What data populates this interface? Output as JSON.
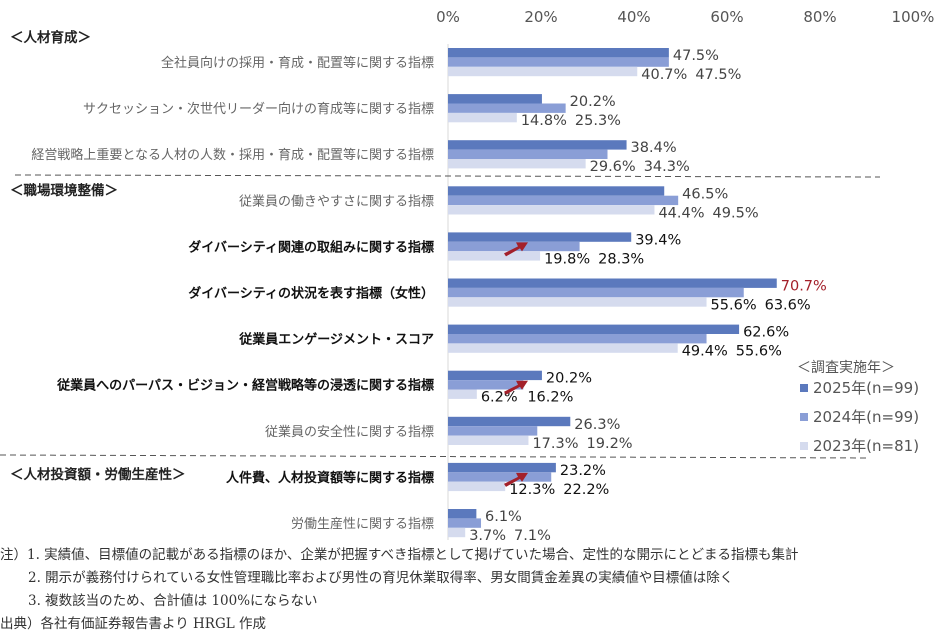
{
  "chart_data": {
    "type": "bar",
    "orientation": "horizontal",
    "xlim": [
      0,
      100
    ],
    "x_ticks": [
      "0%",
      "20%",
      "40%",
      "60%",
      "80%",
      "100%"
    ],
    "groups": [
      {
        "label": "＜人材育成＞",
        "start": 0
      },
      {
        "label": "＜職場環境整備＞",
        "start": 3
      },
      {
        "label": "＜人材投資額・労働生産性＞",
        "start": 9
      }
    ],
    "categories": [
      {
        "label": "全社員向けの採用・育成・配置等に関する指標",
        "bold": false
      },
      {
        "label": "サクセッション・次世代リーダー向けの育成等に関する指標",
        "bold": false
      },
      {
        "label": "経営戦略上重要となる人材の人数・採用・育成・配置等に関する指標",
        "bold": false
      },
      {
        "label": "従業員の働きやすさに関する指標",
        "bold": false
      },
      {
        "label": "ダイバーシティ関連の取組みに関する指標",
        "bold": true,
        "arrow": true
      },
      {
        "label": "ダイバーシティの状況を表す指標（女性）",
        "bold": true
      },
      {
        "label": "従業員エンゲージメント・スコア",
        "bold": true
      },
      {
        "label": "従業員へのパーパス・ビジョン・経営戦略等の浸透に関する指標",
        "bold": true,
        "arrow": true
      },
      {
        "label": "従業員の安全性に関する指標",
        "bold": false
      },
      {
        "label": "人件費、人材投資額等に関する指標",
        "bold": true,
        "arrow": true
      },
      {
        "label": "労働生産性に関する指標",
        "bold": false
      }
    ],
    "series": [
      {
        "name": "2025年(n=99)",
        "color": "#5b79bd",
        "values": [
          47.5,
          20.2,
          38.4,
          46.5,
          39.4,
          70.7,
          62.6,
          20.2,
          26.3,
          23.2,
          6.1
        ]
      },
      {
        "name": "2024年(n=99)",
        "color": "#8a9ed6",
        "values": [
          47.5,
          25.3,
          34.3,
          49.5,
          28.3,
          63.6,
          55.6,
          16.2,
          19.2,
          22.2,
          7.1
        ]
      },
      {
        "name": "2023年(n=81)",
        "color": "#d5dbee",
        "values": [
          40.7,
          14.8,
          29.6,
          44.4,
          19.8,
          55.6,
          49.4,
          6.2,
          17.3,
          12.3,
          3.7
        ]
      }
    ],
    "value_labels": [
      [
        "47.5%",
        "20.2%",
        "38.4%",
        "46.5%",
        "39.4%",
        "70.7%",
        "62.6%",
        "20.2%",
        "26.3%",
        "23.2%",
        "6.1%"
      ],
      [
        "47.5%",
        "25.3%",
        "34.3%",
        "49.5%",
        "28.3%",
        "63.6%",
        "55.6%",
        "16.2%",
        "19.2%",
        "22.2%",
        "7.1%"
      ],
      [
        "40.7%",
        "14.8%",
        "29.6%",
        "44.4%",
        "19.8%",
        "55.6%",
        "49.4%",
        "6.2%",
        "17.3%",
        "12.3%",
        "3.7%"
      ]
    ],
    "highlight_color": "#a3202a",
    "legend": {
      "title": "＜調査実施年＞",
      "position": "right"
    }
  },
  "notes": {
    "n1": "注）1.  実績値、目標値の記載がある指標のほか、企業が把握すべき指標として掲げていた場合、定性的な開示にとどまる指標も集計",
    "n2": "2.  開示が義務付けられている女性管理職比率および男性の育児休業取得率、男女間賃金差異の実績値や目標値は除く",
    "n3": "3.  複数該当のため、合計値は 100%にならない",
    "source": "出典）各社有価証券報告書より HRGL 作成"
  }
}
